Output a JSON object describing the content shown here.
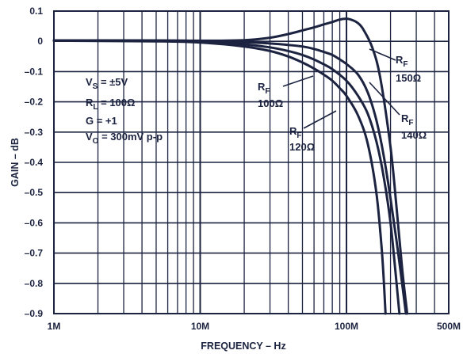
{
  "chart_data": {
    "type": "line",
    "xlabel": "FREQUENCY – Hz",
    "ylabel": "GAIN – dB",
    "x_scale": "log",
    "xlim": [
      1000000,
      500000000
    ],
    "ylim": [
      -0.9,
      0.1
    ],
    "grid": true,
    "x_ticks": [
      {
        "value": 1000000,
        "label": "1M"
      },
      {
        "value": 10000000,
        "label": "10M"
      },
      {
        "value": 100000000,
        "label": "100M"
      },
      {
        "value": 500000000,
        "label": "500M"
      }
    ],
    "y_ticks": [
      {
        "value": 0.1,
        "label": "0.1"
      },
      {
        "value": 0,
        "label": "0"
      },
      {
        "value": -0.1,
        "label": "–0.1"
      },
      {
        "value": -0.2,
        "label": "–0.2"
      },
      {
        "value": -0.3,
        "label": "–0.3"
      },
      {
        "value": -0.4,
        "label": "–0.4"
      },
      {
        "value": -0.5,
        "label": "–0.5"
      },
      {
        "value": -0.6,
        "label": "–0.6"
      },
      {
        "value": -0.7,
        "label": "–0.7"
      },
      {
        "value": -0.8,
        "label": "–0.8"
      },
      {
        "value": -0.9,
        "label": "–0.9"
      }
    ],
    "conditions": [
      {
        "main": "V",
        "sub": "S",
        "rest": " = ±5V"
      },
      {
        "main": "R",
        "sub": "L",
        "rest": " = 100Ω"
      },
      {
        "main": "G = +1",
        "sub": "",
        "rest": ""
      },
      {
        "main": "V",
        "sub": "O",
        "rest": " = 300mV p-p"
      }
    ],
    "series": [
      {
        "name": "R_F 150Ω",
        "label_main": "R",
        "label_sub": "F",
        "label_value": "150Ω",
        "x": [
          1000000,
          5000000,
          10000000,
          20000000,
          30000000,
          40000000,
          50000000,
          60000000,
          70000000,
          80000000,
          90000000,
          100000000,
          110000000,
          120000000,
          130000000,
          150000000,
          170000000,
          200000000,
          220000000,
          240000000,
          260000000
        ],
        "y": [
          0.003,
          0.003,
          0.002,
          0.004,
          0.012,
          0.024,
          0.036,
          0.046,
          0.056,
          0.064,
          0.072,
          0.075,
          0.07,
          0.06,
          0.04,
          -0.02,
          -0.12,
          -0.35,
          -0.55,
          -0.75,
          -0.9
        ]
      },
      {
        "name": "R_F 140Ω",
        "label_main": "R",
        "label_sub": "F",
        "label_value": "140Ω",
        "x": [
          1000000,
          5000000,
          10000000,
          20000000,
          30000000,
          40000000,
          50000000,
          60000000,
          70000000,
          80000000,
          90000000,
          100000000,
          120000000,
          140000000,
          160000000,
          180000000,
          200000000,
          220000000,
          240000000,
          255000000
        ],
        "y": [
          0.003,
          0.003,
          0.001,
          -0.003,
          -0.007,
          -0.012,
          -0.017,
          -0.025,
          -0.035,
          -0.045,
          -0.06,
          -0.075,
          -0.11,
          -0.17,
          -0.26,
          -0.38,
          -0.52,
          -0.66,
          -0.8,
          -0.9
        ]
      },
      {
        "name": "R_F 120Ω",
        "label_main": "R",
        "label_sub": "F",
        "label_value": "120Ω",
        "x": [
          1000000,
          5000000,
          10000000,
          20000000,
          30000000,
          40000000,
          50000000,
          60000000,
          70000000,
          80000000,
          100000000,
          120000000,
          140000000,
          160000000,
          180000000,
          200000000,
          215000000,
          230000000
        ],
        "y": [
          0.002,
          0.001,
          -0.002,
          -0.01,
          -0.02,
          -0.032,
          -0.045,
          -0.06,
          -0.076,
          -0.092,
          -0.13,
          -0.18,
          -0.24,
          -0.33,
          -0.45,
          -0.6,
          -0.75,
          -0.9
        ]
      },
      {
        "name": "R_F 100Ω",
        "label_main": "R",
        "label_sub": "F",
        "label_value": "100Ω",
        "x": [
          1000000,
          5000000,
          10000000,
          20000000,
          30000000,
          40000000,
          50000000,
          60000000,
          70000000,
          80000000,
          90000000,
          100000000,
          120000000,
          140000000,
          160000000,
          175000000,
          185000000
        ],
        "y": [
          0.002,
          0.0,
          -0.004,
          -0.017,
          -0.032,
          -0.05,
          -0.07,
          -0.09,
          -0.11,
          -0.13,
          -0.155,
          -0.18,
          -0.245,
          -0.34,
          -0.5,
          -0.7,
          -0.9
        ]
      }
    ]
  }
}
